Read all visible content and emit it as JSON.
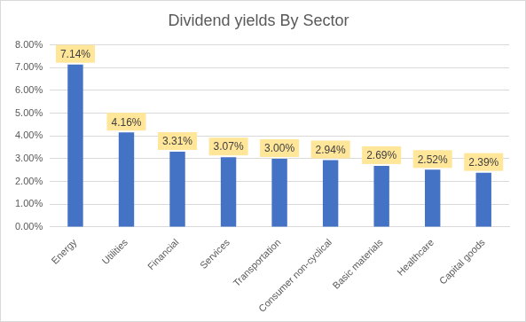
{
  "chart_data": {
    "type": "bar",
    "title": "Dividend yields By Sector",
    "categories": [
      "Energy",
      "Utilities",
      "Financial",
      "Services",
      "Transportation",
      "Consumer non-cyclical",
      "Basic materials",
      "Healthcare",
      "Capital goods"
    ],
    "values": [
      7.14,
      4.16,
      3.31,
      3.07,
      3.0,
      2.94,
      2.69,
      2.52,
      2.39
    ],
    "value_labels": [
      "7.14%",
      "4.16%",
      "3.31%",
      "3.07%",
      "3.00%",
      "2.94%",
      "2.69%",
      "2.52%",
      "2.39%"
    ],
    "color": "#4472c4",
    "ylim": [
      0,
      8
    ],
    "yticks": [
      {
        "value": 0,
        "label": "0.00%"
      },
      {
        "value": 1,
        "label": "1.00%"
      },
      {
        "value": 2,
        "label": "2.00%"
      },
      {
        "value": 3,
        "label": "3.00%"
      },
      {
        "value": 4,
        "label": "4.00%"
      },
      {
        "value": 5,
        "label": "5.00%"
      },
      {
        "value": 6,
        "label": "6.00%"
      },
      {
        "value": 7,
        "label": "7.00%"
      },
      {
        "value": 8,
        "label": "8.00%"
      }
    ],
    "grid": true,
    "data_labels": true
  }
}
